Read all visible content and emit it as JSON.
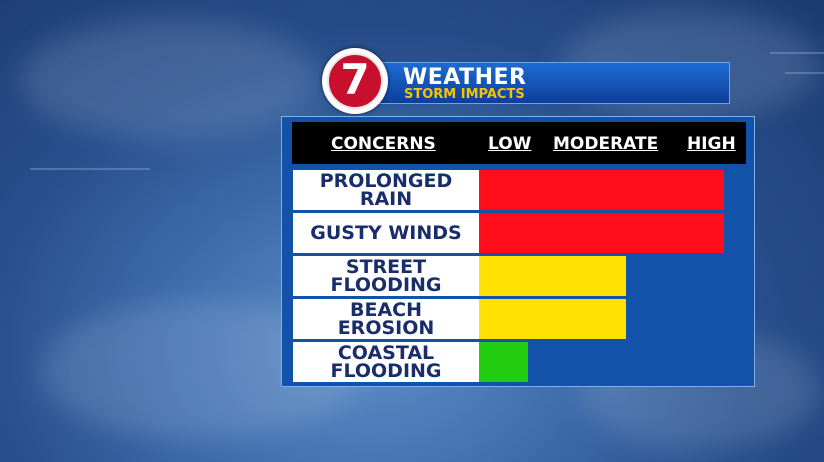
{
  "header": {
    "logo_number": "7",
    "title": "WEATHER",
    "subtitle": "STORM IMPACTS"
  },
  "chart_data": {
    "type": "bar",
    "orientation": "horizontal",
    "columns": [
      "CONCERNS",
      "LOW",
      "MODERATE",
      "HIGH"
    ],
    "scale_levels": [
      "LOW",
      "MODERATE",
      "HIGH"
    ],
    "xlim": [
      0,
      3
    ],
    "categories": [
      [
        "PROLONGED",
        "RAIN"
      ],
      [
        "GUSTY WINDS"
      ],
      [
        "STREET",
        "FLOODING"
      ],
      [
        "BEACH",
        "EROSION"
      ],
      [
        "COASTAL",
        "FLOODING"
      ]
    ],
    "values": [
      3,
      3,
      1.8,
      1.8,
      0.6
    ],
    "bar_colors": [
      "#ff0d1a",
      "#ff0d1a",
      "#ffe100",
      "#ffe100",
      "#22cc11"
    ]
  },
  "colors": {
    "panel": "#1252a8",
    "label_text": "#1a2d6b",
    "header_accent": "#f5c400",
    "logo_red": "#c8102e"
  }
}
